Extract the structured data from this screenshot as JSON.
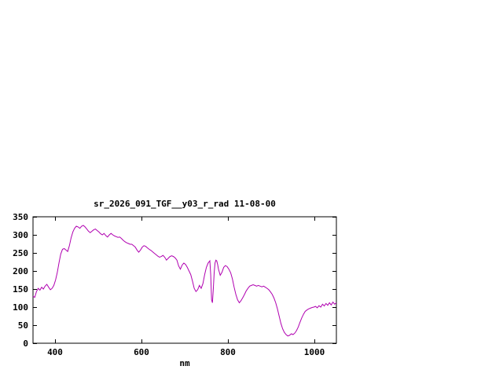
{
  "window": {
    "background": "#ffffff"
  },
  "chart_data": {
    "type": "line",
    "title": "sr_2026_091_TGF__y03_r_rad 11-08-00",
    "xlabel": "nm",
    "ylabel": "",
    "xlim": [
      350,
      1050
    ],
    "ylim": [
      0,
      350
    ],
    "xticks": [
      400,
      600,
      800,
      1000
    ],
    "yticks": [
      0,
      50,
      100,
      150,
      200,
      250,
      300,
      350
    ],
    "grid": false,
    "legend": "none",
    "line_color": "#b000b0",
    "axis_color": "#000000",
    "series": [
      {
        "points": [
          [
            350,
            130
          ],
          [
            354,
            127
          ],
          [
            358,
            143
          ],
          [
            362,
            152
          ],
          [
            366,
            147
          ],
          [
            370,
            155
          ],
          [
            374,
            150
          ],
          [
            378,
            158
          ],
          [
            382,
            163
          ],
          [
            386,
            155
          ],
          [
            390,
            148
          ],
          [
            394,
            152
          ],
          [
            398,
            160
          ],
          [
            402,
            175
          ],
          [
            406,
            196
          ],
          [
            410,
            223
          ],
          [
            414,
            247
          ],
          [
            418,
            260
          ],
          [
            422,
            262
          ],
          [
            426,
            258
          ],
          [
            430,
            254
          ],
          [
            434,
            270
          ],
          [
            438,
            292
          ],
          [
            442,
            308
          ],
          [
            446,
            318
          ],
          [
            450,
            324
          ],
          [
            454,
            322
          ],
          [
            458,
            318
          ],
          [
            462,
            324
          ],
          [
            466,
            326
          ],
          [
            470,
            322
          ],
          [
            474,
            316
          ],
          [
            478,
            310
          ],
          [
            482,
            306
          ],
          [
            486,
            310
          ],
          [
            490,
            314
          ],
          [
            494,
            316
          ],
          [
            498,
            312
          ],
          [
            502,
            308
          ],
          [
            506,
            303
          ],
          [
            510,
            300
          ],
          [
            514,
            304
          ],
          [
            518,
            298
          ],
          [
            522,
            294
          ],
          [
            526,
            300
          ],
          [
            530,
            304
          ],
          [
            534,
            300
          ],
          [
            538,
            297
          ],
          [
            542,
            295
          ],
          [
            546,
            293
          ],
          [
            550,
            294
          ],
          [
            554,
            290
          ],
          [
            558,
            285
          ],
          [
            562,
            281
          ],
          [
            566,
            278
          ],
          [
            570,
            276
          ],
          [
            574,
            274
          ],
          [
            578,
            274
          ],
          [
            582,
            270
          ],
          [
            586,
            266
          ],
          [
            590,
            258
          ],
          [
            594,
            252
          ],
          [
            598,
            258
          ],
          [
            602,
            266
          ],
          [
            606,
            270
          ],
          [
            610,
            268
          ],
          [
            614,
            264
          ],
          [
            618,
            260
          ],
          [
            622,
            257
          ],
          [
            626,
            253
          ],
          [
            630,
            249
          ],
          [
            634,
            245
          ],
          [
            638,
            241
          ],
          [
            642,
            238
          ],
          [
            646,
            240
          ],
          [
            650,
            243
          ],
          [
            654,
            238
          ],
          [
            658,
            230
          ],
          [
            662,
            235
          ],
          [
            666,
            240
          ],
          [
            670,
            242
          ],
          [
            674,
            240
          ],
          [
            678,
            236
          ],
          [
            682,
            230
          ],
          [
            686,
            214
          ],
          [
            690,
            205
          ],
          [
            694,
            216
          ],
          [
            698,
            222
          ],
          [
            702,
            218
          ],
          [
            706,
            210
          ],
          [
            710,
            200
          ],
          [
            714,
            190
          ],
          [
            718,
            172
          ],
          [
            722,
            152
          ],
          [
            726,
            143
          ],
          [
            730,
            148
          ],
          [
            734,
            160
          ],
          [
            738,
            152
          ],
          [
            742,
            165
          ],
          [
            746,
            190
          ],
          [
            750,
            210
          ],
          [
            754,
            222
          ],
          [
            758,
            228
          ],
          [
            760,
            190
          ],
          [
            762,
            120
          ],
          [
            764,
            112
          ],
          [
            766,
            150
          ],
          [
            768,
            195
          ],
          [
            770,
            222
          ],
          [
            772,
            230
          ],
          [
            774,
            228
          ],
          [
            776,
            218
          ],
          [
            778,
            205
          ],
          [
            782,
            188
          ],
          [
            786,
            196
          ],
          [
            790,
            210
          ],
          [
            794,
            215
          ],
          [
            798,
            212
          ],
          [
            802,
            205
          ],
          [
            806,
            195
          ],
          [
            810,
            178
          ],
          [
            814,
            155
          ],
          [
            818,
            135
          ],
          [
            822,
            120
          ],
          [
            826,
            112
          ],
          [
            830,
            118
          ],
          [
            834,
            126
          ],
          [
            838,
            135
          ],
          [
            842,
            145
          ],
          [
            846,
            152
          ],
          [
            850,
            158
          ],
          [
            854,
            160
          ],
          [
            858,
            162
          ],
          [
            862,
            160
          ],
          [
            866,
            158
          ],
          [
            870,
            160
          ],
          [
            874,
            158
          ],
          [
            878,
            156
          ],
          [
            882,
            158
          ],
          [
            886,
            155
          ],
          [
            890,
            152
          ],
          [
            894,
            148
          ],
          [
            898,
            142
          ],
          [
            902,
            135
          ],
          [
            906,
            125
          ],
          [
            910,
            112
          ],
          [
            914,
            95
          ],
          [
            918,
            75
          ],
          [
            922,
            55
          ],
          [
            926,
            40
          ],
          [
            930,
            30
          ],
          [
            934,
            24
          ],
          [
            938,
            20
          ],
          [
            942,
            22
          ],
          [
            946,
            26
          ],
          [
            950,
            24
          ],
          [
            954,
            28
          ],
          [
            958,
            35
          ],
          [
            962,
            45
          ],
          [
            966,
            58
          ],
          [
            970,
            70
          ],
          [
            974,
            80
          ],
          [
            978,
            88
          ],
          [
            982,
            92
          ],
          [
            986,
            95
          ],
          [
            990,
            97
          ],
          [
            994,
            99
          ],
          [
            998,
            100
          ],
          [
            1002,
            102
          ],
          [
            1006,
            98
          ],
          [
            1010,
            104
          ],
          [
            1014,
            100
          ],
          [
            1018,
            108
          ],
          [
            1022,
            103
          ],
          [
            1026,
            110
          ],
          [
            1030,
            105
          ],
          [
            1034,
            112
          ],
          [
            1038,
            106
          ],
          [
            1042,
            114
          ],
          [
            1046,
            108
          ],
          [
            1050,
            112
          ]
        ]
      }
    ]
  }
}
